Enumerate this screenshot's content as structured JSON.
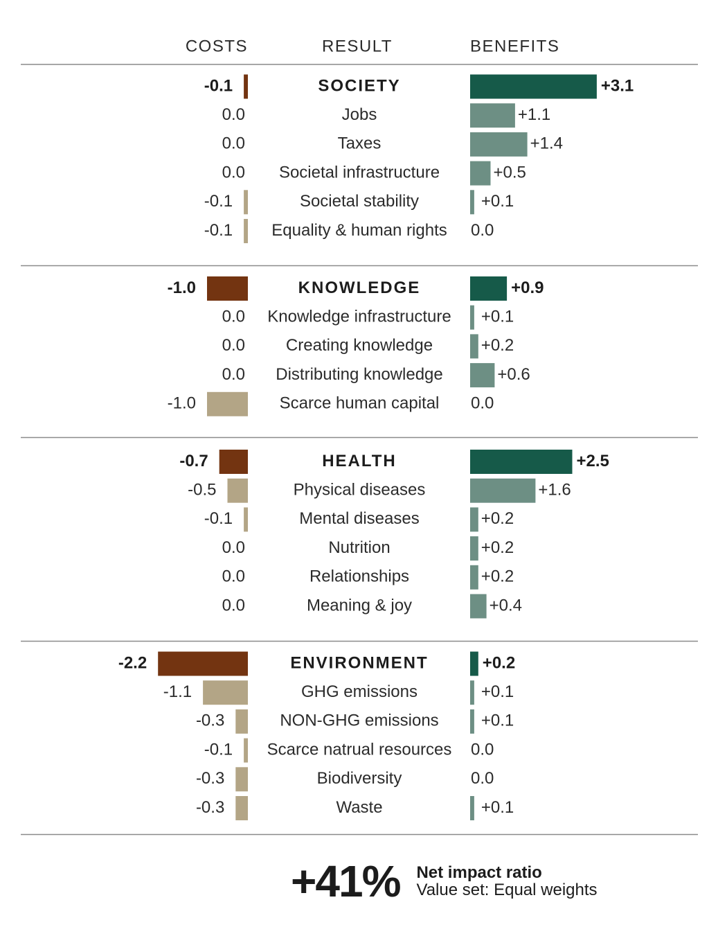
{
  "chart_data": {
    "type": "bar",
    "headers": {
      "costs": "COSTS",
      "result": "RESULT",
      "benefits": "BENEFITS"
    },
    "colors": {
      "cost_category": "#733411",
      "cost_item": "#b3a586",
      "benefit_category": "#165a49",
      "benefit_item": "#6d8f84",
      "rule": "#8a8a8a",
      "text": "#2b2b2b"
    },
    "groups": [
      {
        "name": "SOCIETY",
        "cost": -0.1,
        "cost_label": "-0.1",
        "benefit": 3.1,
        "benefit_label": "+3.1",
        "items": [
          {
            "name": "Jobs",
            "cost": 0.0,
            "cost_label": "0.0",
            "benefit": 1.1,
            "benefit_label": "+1.1"
          },
          {
            "name": "Taxes",
            "cost": 0.0,
            "cost_label": "0.0",
            "benefit": 1.4,
            "benefit_label": "+1.4"
          },
          {
            "name": "Societal infrastructure",
            "cost": 0.0,
            "cost_label": "0.0",
            "benefit": 0.5,
            "benefit_label": "+0.5"
          },
          {
            "name": "Societal stability",
            "cost": -0.1,
            "cost_label": "-0.1",
            "benefit": 0.1,
            "benefit_label": "+0.1"
          },
          {
            "name": "Equality & human rights",
            "cost": -0.1,
            "cost_label": "-0.1",
            "benefit": 0.0,
            "benefit_label": "0.0"
          }
        ]
      },
      {
        "name": "KNOWLEDGE",
        "cost": -1.0,
        "cost_label": "-1.0",
        "benefit": 0.9,
        "benefit_label": "+0.9",
        "items": [
          {
            "name": "Knowledge infrastructure",
            "cost": 0.0,
            "cost_label": "0.0",
            "benefit": 0.1,
            "benefit_label": "+0.1"
          },
          {
            "name": "Creating knowledge",
            "cost": 0.0,
            "cost_label": "0.0",
            "benefit": 0.2,
            "benefit_label": "+0.2"
          },
          {
            "name": "Distributing knowledge",
            "cost": 0.0,
            "cost_label": "0.0",
            "benefit": 0.6,
            "benefit_label": "+0.6"
          },
          {
            "name": "Scarce human capital",
            "cost": -1.0,
            "cost_label": "-1.0",
            "benefit": 0.0,
            "benefit_label": "0.0"
          }
        ]
      },
      {
        "name": "HEALTH",
        "cost": -0.7,
        "cost_label": "-0.7",
        "benefit": 2.5,
        "benefit_label": "+2.5",
        "items": [
          {
            "name": "Physical diseases",
            "cost": -0.5,
            "cost_label": "-0.5",
            "benefit": 1.6,
            "benefit_label": "+1.6"
          },
          {
            "name": "Mental diseases",
            "cost": -0.1,
            "cost_label": "-0.1",
            "benefit": 0.2,
            "benefit_label": "+0.2"
          },
          {
            "name": "Nutrition",
            "cost": 0.0,
            "cost_label": "0.0",
            "benefit": 0.2,
            "benefit_label": "+0.2"
          },
          {
            "name": "Relationships",
            "cost": 0.0,
            "cost_label": "0.0",
            "benefit": 0.2,
            "benefit_label": "+0.2"
          },
          {
            "name": "Meaning & joy",
            "cost": 0.0,
            "cost_label": "0.0",
            "benefit": 0.4,
            "benefit_label": "+0.4"
          }
        ]
      },
      {
        "name": "ENVIRONMENT",
        "cost": -2.2,
        "cost_label": "-2.2",
        "benefit": 0.2,
        "benefit_label": "+0.2",
        "items": [
          {
            "name": "GHG emissions",
            "cost": -1.1,
            "cost_label": "-1.1",
            "benefit": 0.1,
            "benefit_label": "+0.1"
          },
          {
            "name": "NON-GHG emissions",
            "cost": -0.3,
            "cost_label": "-0.3",
            "benefit": 0.1,
            "benefit_label": "+0.1"
          },
          {
            "name": "Scarce natrual resources",
            "cost": -0.1,
            "cost_label": "-0.1",
            "benefit": 0.0,
            "benefit_label": "0.0"
          },
          {
            "name": "Biodiversity",
            "cost": -0.3,
            "cost_label": "-0.3",
            "benefit": 0.0,
            "benefit_label": "0.0"
          },
          {
            "name": "Waste",
            "cost": -0.3,
            "cost_label": "-0.3",
            "benefit": 0.1,
            "benefit_label": "+0.1"
          }
        ]
      }
    ]
  },
  "summary": {
    "ratio": "+41%",
    "title": "Net impact ratio",
    "subtitle": "Value set: Equal weights"
  }
}
